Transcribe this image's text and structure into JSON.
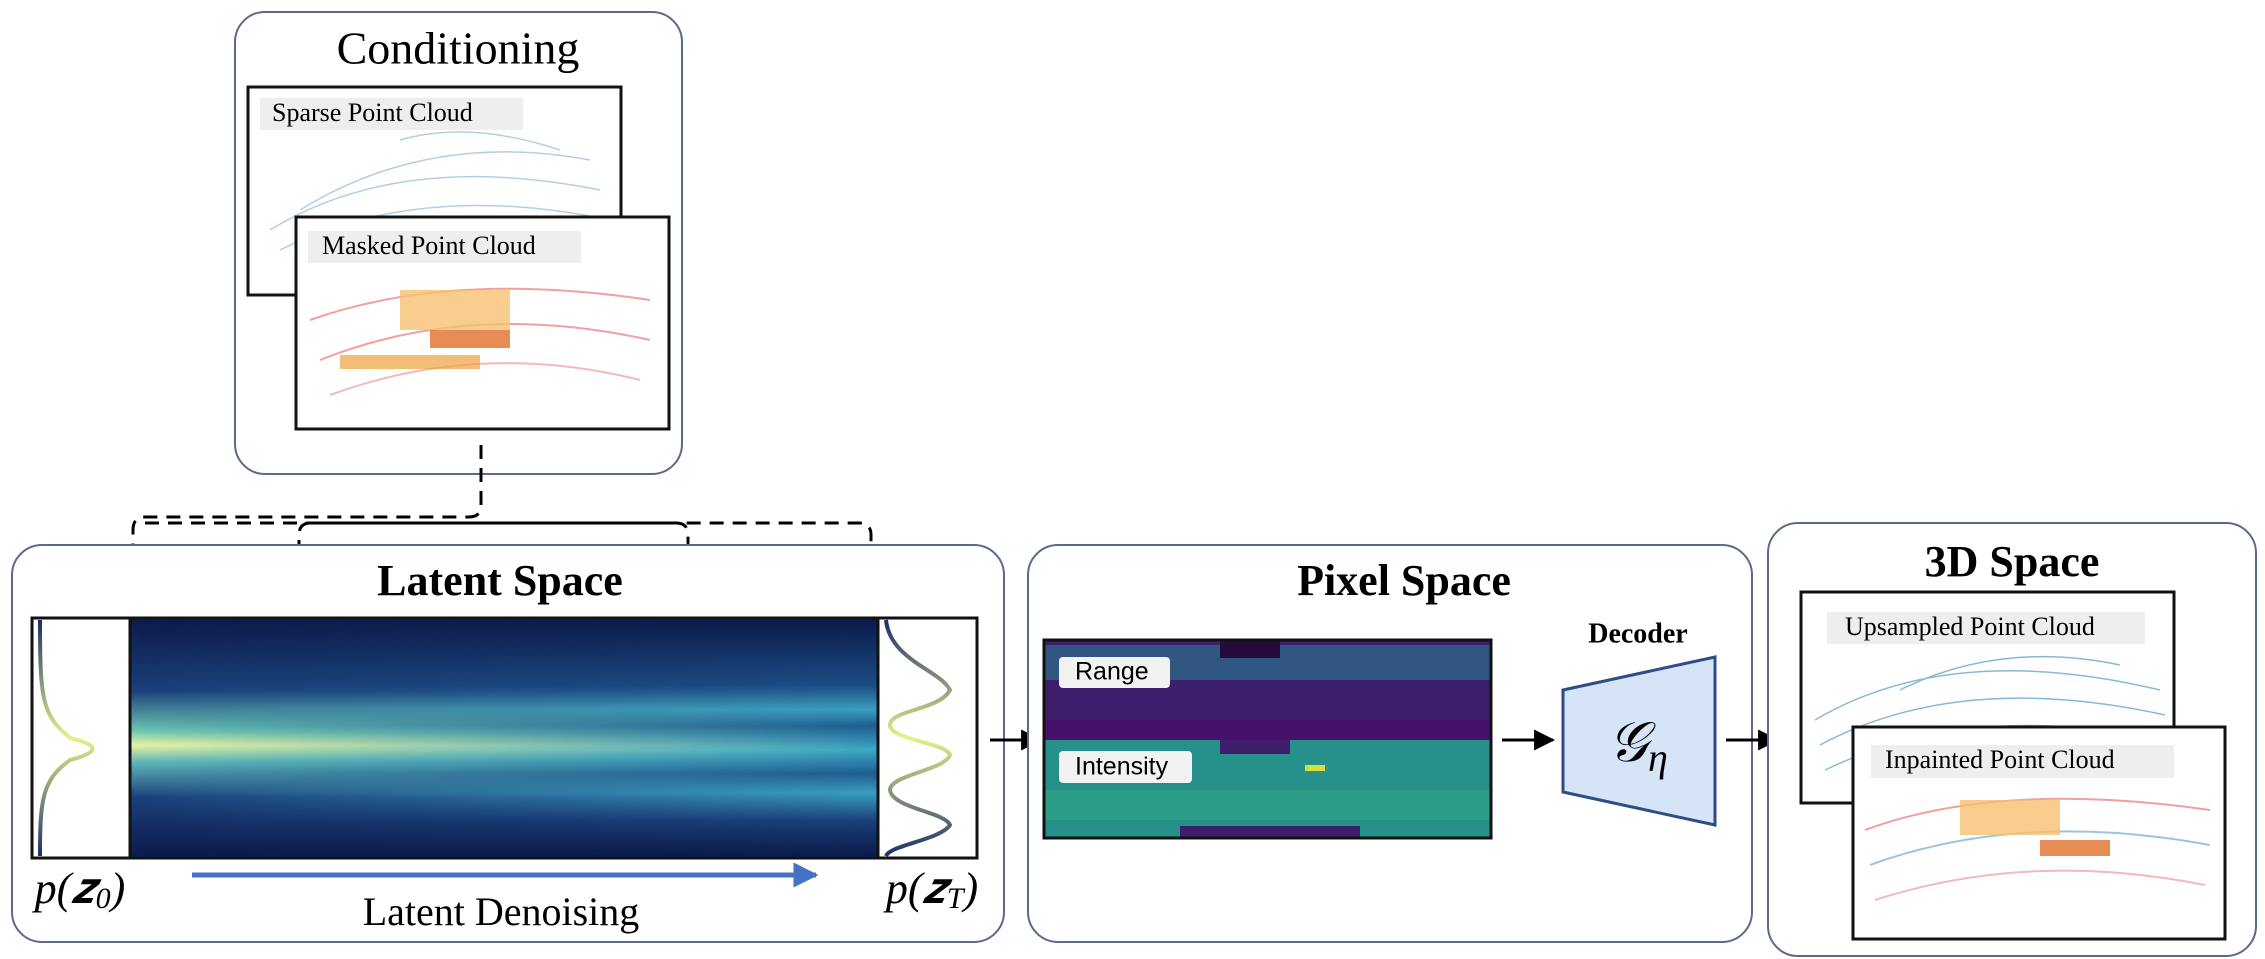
{
  "conditioning": {
    "title": "Conditioning",
    "sparse_label": "Sparse Point Cloud",
    "masked_label": "Masked Point Cloud"
  },
  "latent": {
    "title": "Latent Space",
    "left_dist": {
      "base": "p(𝒛",
      "sub": "0",
      "close": ")"
    },
    "right_dist": {
      "base": "p(𝒛",
      "sub": "T",
      "close": ")"
    },
    "arrow_label": "Latent Denoising"
  },
  "pixel": {
    "title": "Pixel Space",
    "range_label": "Range",
    "intensity_label": "Intensity",
    "decoder_title": "Decoder",
    "decoder_symbol": {
      "base": "𝒢",
      "sub": "η"
    }
  },
  "space3d": {
    "title": "3D Space",
    "upsampled_label": "Upsampled Point Cloud",
    "inpainted_label": "Inpainted Point Cloud"
  }
}
